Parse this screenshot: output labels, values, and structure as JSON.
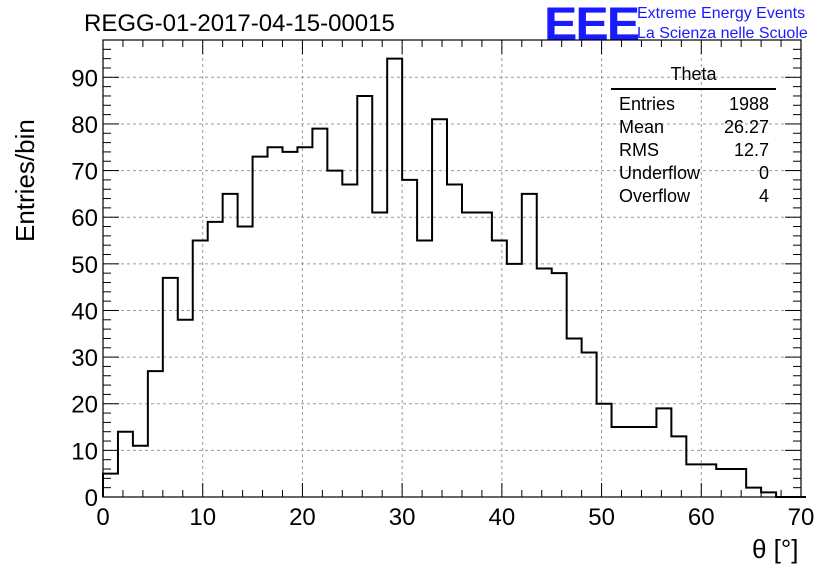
{
  "header": {
    "run_title": "REGG-01-2017-04-15-00015",
    "logo_text": "EEE",
    "logo_line1": "Extreme Energy Events",
    "logo_line2": "La Scienza nelle Scuole"
  },
  "stats": {
    "name": "Theta",
    "rows": [
      {
        "label": "Entries",
        "value": "1988"
      },
      {
        "label": "Mean",
        "value": "26.27"
      },
      {
        "label": "RMS",
        "value": "12.7"
      },
      {
        "label": "Underflow",
        "value": "0"
      },
      {
        "label": "Overflow",
        "value": "4"
      }
    ]
  },
  "chart_data": {
    "type": "bar",
    "style": "step-histogram",
    "xlabel": "θ [°]",
    "ylabel": "Entries/bin",
    "xlim": [
      0,
      70
    ],
    "ylim": [
      0,
      98
    ],
    "xticks": [
      0,
      10,
      20,
      30,
      40,
      50,
      60,
      70
    ],
    "yticks": [
      0,
      10,
      20,
      30,
      40,
      50,
      60,
      70,
      80,
      90
    ],
    "grid": true,
    "bin_width": 1.5,
    "bin_edges_start": 0,
    "values": [
      5,
      14,
      11,
      27,
      47,
      38,
      55,
      59,
      65,
      58,
      73,
      75,
      74,
      75,
      79,
      70,
      67,
      86,
      61,
      94,
      68,
      55,
      81,
      67,
      61,
      61,
      55,
      50,
      65,
      49,
      48,
      34,
      31,
      20,
      15,
      15,
      15,
      19,
      13,
      7,
      7,
      6,
      6,
      2,
      1,
      0,
      0
    ]
  },
  "colors": {
    "logo": "#1a1aff",
    "line": "#000000",
    "grid": "#9a9a9a"
  }
}
